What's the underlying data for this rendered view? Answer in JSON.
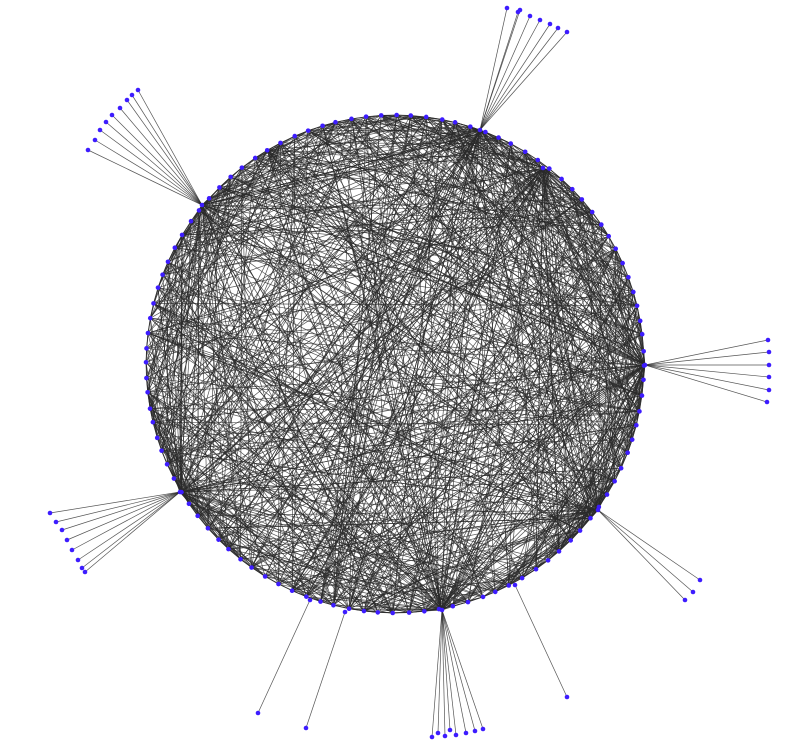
{
  "diagram": {
    "type": "network-graph",
    "layout": "circular",
    "node_color": "#3d1cff",
    "edge_color": "#2b2b2b",
    "directed": true,
    "hub_fan_sizes": [
      9,
      8,
      0,
      6,
      3,
      8,
      8
    ],
    "extra_pendant_edges": 3
  }
}
